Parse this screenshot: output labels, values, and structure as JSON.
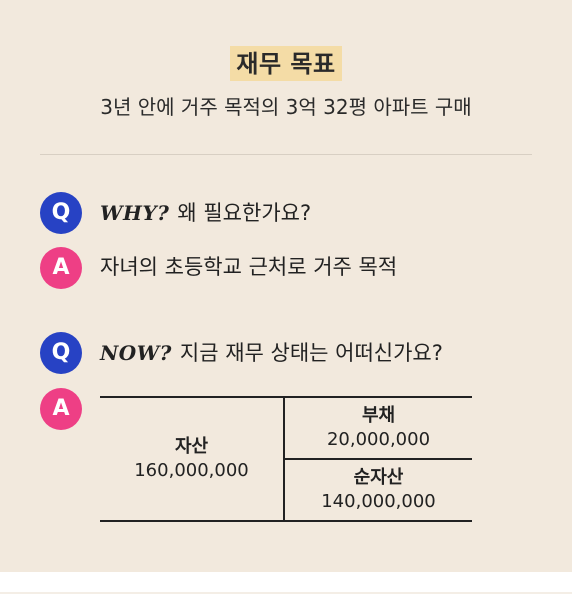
{
  "goal": {
    "title": "재무 목표",
    "subtitle": "3년 안에 거주 목적의 3억 32평 아파트 구매"
  },
  "qa": [
    {
      "q_badge": "Q",
      "q_prefix": "WHY?",
      "question": "왜 필요한가요?",
      "a_badge": "A",
      "answer": "자녀의 초등학교 근처로 거주 목적"
    },
    {
      "q_badge": "Q",
      "q_prefix": "NOW?",
      "question": "지금 재무 상태는 어떠신가요?",
      "a_badge": "A"
    }
  ],
  "balance": {
    "assets_label": "자산",
    "assets_value": "160,000,000",
    "debt_label": "부채",
    "debt_value": "20,000,000",
    "net_label": "순자산",
    "net_value": "140,000,000"
  },
  "colors": {
    "background": "#f2e9dd",
    "title_highlight": "#f4dca6",
    "q_circle": "#2742c4",
    "a_circle": "#ee3f85"
  }
}
